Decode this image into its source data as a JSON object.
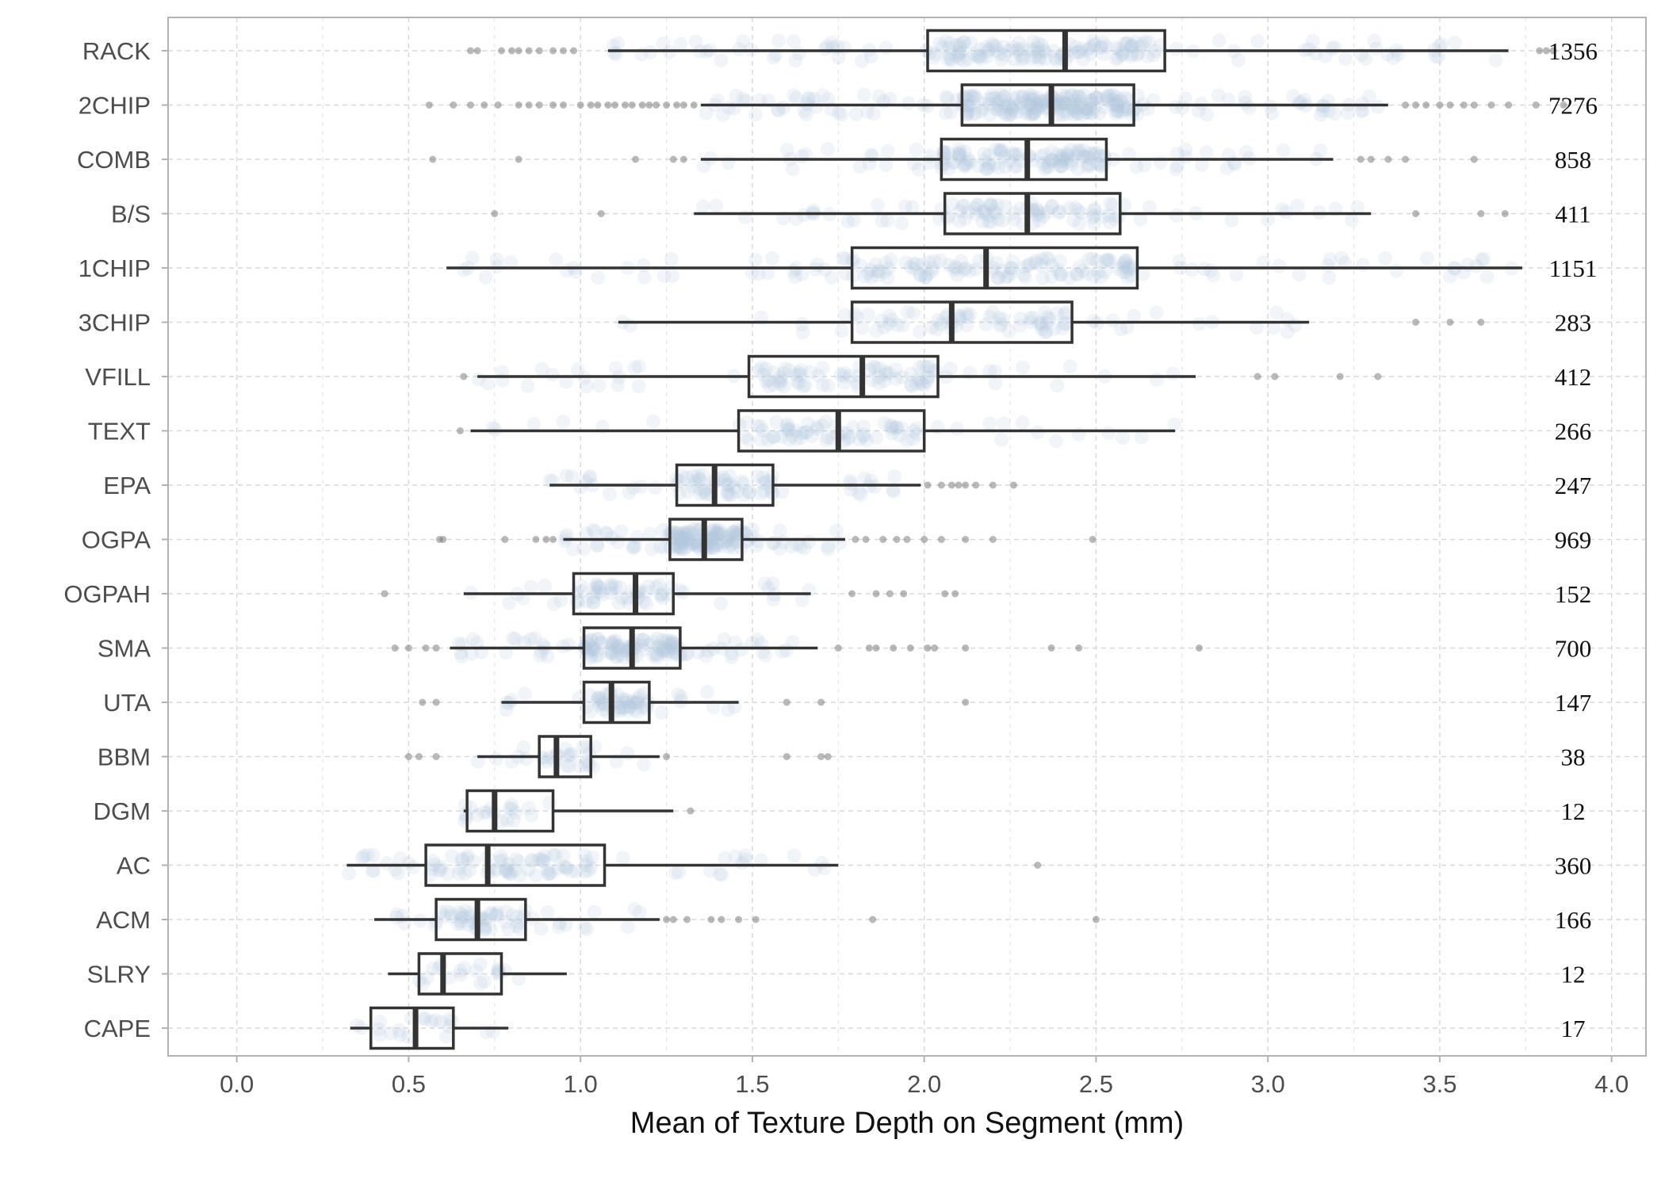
{
  "chart_data": {
    "type": "boxplot",
    "orientation": "horizontal",
    "title": "",
    "xlabel": "Mean of Texture Depth on Segment (mm)",
    "ylabel": "",
    "xlim": [
      -0.2,
      4.1
    ],
    "xticks": [
      "0.0",
      "0.5",
      "1.0",
      "1.5",
      "2.0",
      "2.5",
      "3.0",
      "3.5",
      "4.0"
    ],
    "grid": true,
    "colors": {
      "jitter": "#b3c6dc",
      "box": "#333333",
      "outlier": "#808080",
      "grid": "#d9d9d9",
      "frame": "#b3b3b3"
    },
    "categories": [
      {
        "name": "RACK",
        "count": "1356",
        "whisker_low": 1.08,
        "q1": 2.01,
        "median": 2.41,
        "q3": 2.7,
        "whisker_high": 3.7,
        "outliers": [
          0.68,
          0.7,
          0.77,
          0.8,
          0.82,
          0.85,
          0.88,
          0.92,
          0.95,
          0.98,
          3.79,
          3.81,
          3.83
        ]
      },
      {
        "name": "2CHIP",
        "count": "7276",
        "whisker_low": 1.35,
        "q1": 2.11,
        "median": 2.37,
        "q3": 2.61,
        "whisker_high": 3.35,
        "outliers": [
          0.56,
          0.63,
          0.68,
          0.72,
          0.76,
          0.82,
          0.85,
          0.88,
          0.92,
          0.95,
          1.0,
          1.03,
          1.05,
          1.08,
          1.1,
          1.13,
          1.15,
          1.18,
          1.2,
          1.22,
          1.25,
          1.28,
          1.3,
          1.33,
          3.4,
          3.43,
          3.46,
          3.5,
          3.53,
          3.57,
          3.6,
          3.65,
          3.7,
          3.78,
          3.86
        ]
      },
      {
        "name": "COMB",
        "count": "858",
        "whisker_low": 1.35,
        "q1": 2.05,
        "median": 2.3,
        "q3": 2.53,
        "whisker_high": 3.19,
        "outliers": [
          0.57,
          0.82,
          1.16,
          1.27,
          1.3,
          3.27,
          3.3,
          3.35,
          3.4,
          3.6
        ]
      },
      {
        "name": "B/S",
        "count": "411",
        "whisker_low": 1.33,
        "q1": 2.06,
        "median": 2.3,
        "q3": 2.57,
        "whisker_high": 3.3,
        "outliers": [
          0.75,
          1.06,
          3.43,
          3.62,
          3.69
        ]
      },
      {
        "name": "1CHIP",
        "count": "1151",
        "whisker_low": 0.61,
        "q1": 1.79,
        "median": 2.18,
        "q3": 2.62,
        "whisker_high": 3.74,
        "outliers": []
      },
      {
        "name": "3CHIP",
        "count": "283",
        "whisker_low": 1.11,
        "q1": 1.79,
        "median": 2.08,
        "q3": 2.43,
        "whisker_high": 3.12,
        "outliers": [
          3.43,
          3.53,
          3.62
        ]
      },
      {
        "name": "VFILL",
        "count": "412",
        "whisker_low": 0.7,
        "q1": 1.49,
        "median": 1.82,
        "q3": 2.04,
        "whisker_high": 2.79,
        "outliers": [
          0.66,
          2.97,
          3.02,
          3.21,
          3.32
        ]
      },
      {
        "name": "TEXT",
        "count": "266",
        "whisker_low": 0.68,
        "q1": 1.46,
        "median": 1.75,
        "q3": 2.0,
        "whisker_high": 2.73,
        "outliers": [
          0.65
        ]
      },
      {
        "name": "EPA",
        "count": "247",
        "whisker_low": 0.91,
        "q1": 1.28,
        "median": 1.39,
        "q3": 1.56,
        "whisker_high": 1.99,
        "outliers": [
          2.01,
          2.05,
          2.08,
          2.1,
          2.12,
          2.15,
          2.2,
          2.26
        ]
      },
      {
        "name": "OGPA",
        "count": "969",
        "whisker_low": 0.95,
        "q1": 1.26,
        "median": 1.36,
        "q3": 1.47,
        "whisker_high": 1.77,
        "outliers": [
          0.59,
          0.6,
          0.78,
          0.87,
          0.9,
          0.92,
          1.8,
          1.83,
          1.88,
          1.92,
          1.95,
          2.0,
          2.05,
          2.12,
          2.2,
          2.49
        ]
      },
      {
        "name": "OGPAH",
        "count": "152",
        "whisker_low": 0.66,
        "q1": 0.98,
        "median": 1.16,
        "q3": 1.27,
        "whisker_high": 1.67,
        "outliers": [
          0.43,
          1.79,
          1.86,
          1.9,
          1.94,
          2.06,
          2.09
        ]
      },
      {
        "name": "SMA",
        "count": "700",
        "whisker_low": 0.62,
        "q1": 1.01,
        "median": 1.15,
        "q3": 1.29,
        "whisker_high": 1.69,
        "outliers": [
          0.46,
          0.5,
          0.55,
          0.58,
          1.75,
          1.84,
          1.86,
          1.91,
          1.96,
          2.01,
          2.03,
          2.12,
          2.37,
          2.45,
          2.8
        ]
      },
      {
        "name": "UTA",
        "count": "147",
        "whisker_low": 0.77,
        "q1": 1.01,
        "median": 1.09,
        "q3": 1.2,
        "whisker_high": 1.46,
        "outliers": [
          0.54,
          0.58,
          1.6,
          1.7,
          2.12
        ]
      },
      {
        "name": "BBM",
        "count": "38",
        "whisker_low": 0.7,
        "q1": 0.88,
        "median": 0.93,
        "q3": 1.03,
        "whisker_high": 1.23,
        "outliers": [
          0.5,
          0.53,
          0.58,
          1.25,
          1.6,
          1.7,
          1.72
        ]
      },
      {
        "name": "DGM",
        "count": "12",
        "whisker_low": 0.66,
        "q1": 0.67,
        "median": 0.75,
        "q3": 0.92,
        "whisker_high": 1.27,
        "outliers": [
          1.32
        ]
      },
      {
        "name": "AC",
        "count": "360",
        "whisker_low": 0.32,
        "q1": 0.55,
        "median": 0.73,
        "q3": 1.07,
        "whisker_high": 1.75,
        "outliers": [
          2.33
        ]
      },
      {
        "name": "ACM",
        "count": "166",
        "whisker_low": 0.4,
        "q1": 0.58,
        "median": 0.7,
        "q3": 0.84,
        "whisker_high": 1.23,
        "outliers": [
          1.25,
          1.27,
          1.31,
          1.38,
          1.41,
          1.46,
          1.51,
          1.85,
          2.5
        ]
      },
      {
        "name": "SLRY",
        "count": "12",
        "whisker_low": 0.44,
        "q1": 0.53,
        "median": 0.6,
        "q3": 0.77,
        "whisker_high": 0.96,
        "outliers": []
      },
      {
        "name": "CAPE",
        "count": "17",
        "whisker_low": 0.33,
        "q1": 0.39,
        "median": 0.52,
        "q3": 0.63,
        "whisker_high": 0.79,
        "outliers": []
      }
    ]
  }
}
